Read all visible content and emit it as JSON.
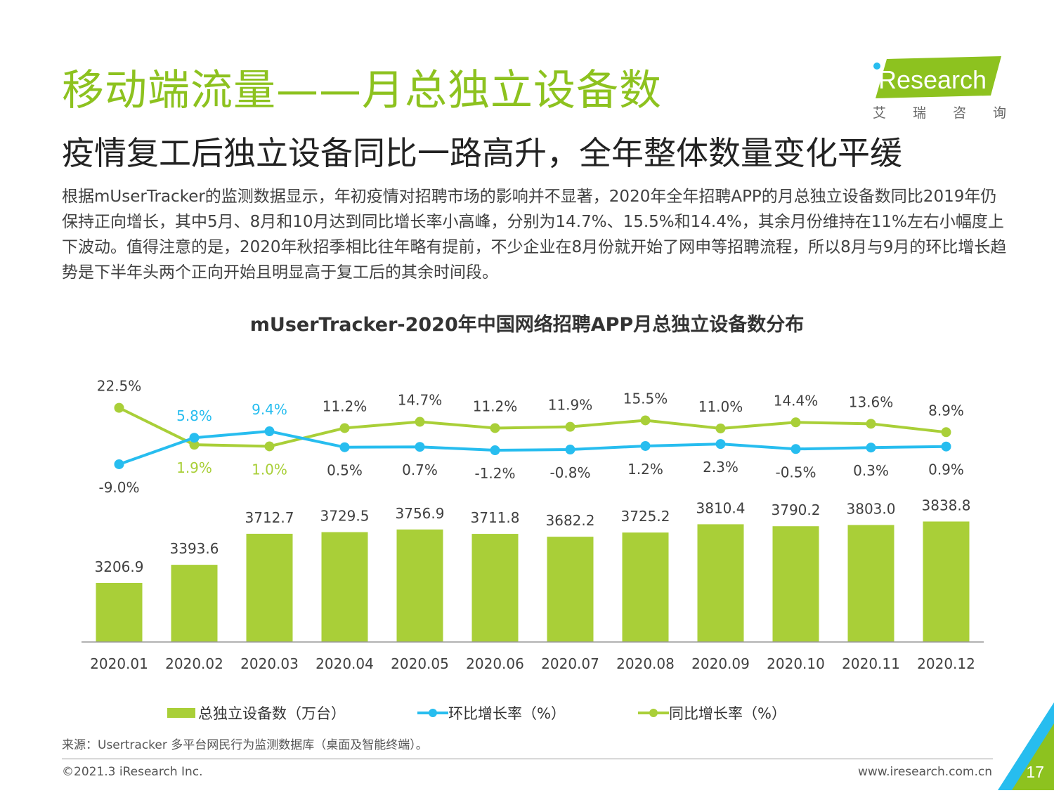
{
  "page": {
    "title": "移动端流量——月总独立设备数",
    "subtitle": "疫情复工后独立设备同比一路高升，全年整体数量变化平缓",
    "body": "根据mUserTracker的监测数据显示，年初疫情对招聘市场的影响并不显著，2020年全年招聘APP的月总独立设备数同比2019年仍保持正向增长，其中5月、8月和10月达到同比增长率小高峰，分别为14.7%、15.5%和14.4%，其余月份维持在11%左右小幅度上下波动。值得注意的是，2020年秋招季相比往年略有提前，不少企业在8月份就开始了网申等招聘流程，所以8月与9月的环比增长趋势是下半年头两个正向开始且明显高于复工后的其余时间段。",
    "source": "来源：Usertracker 多平台网民行为监测数据库（桌面及智能终端）。",
    "copyright": "©2021.3 iResearch Inc.",
    "website": "www.iresearch.com.cn",
    "page_number": "17"
  },
  "logo": {
    "text": "iResearch",
    "tagline": [
      "艾",
      "瑞",
      "咨",
      "询"
    ]
  },
  "colors": {
    "green": "#a9cf38",
    "title_green": "#8dc21f",
    "blue": "#27bdef"
  },
  "chart_data": {
    "type": "bar",
    "title": "mUserTracker-2020年中国网络招聘APP月总独立设备数分布",
    "categories": [
      "2020.01",
      "2020.02",
      "2020.03",
      "2020.04",
      "2020.05",
      "2020.06",
      "2020.07",
      "2020.08",
      "2020.09",
      "2020.10",
      "2020.11",
      "2020.12"
    ],
    "bar_labels": [
      "3206.9",
      "3393.6",
      "3712.7",
      "3729.5",
      "3756.9",
      "3711.8",
      "3682.2",
      "3725.2",
      "3810.4",
      "3790.2",
      "3803.0",
      "3838.8"
    ],
    "series": [
      {
        "name": "总独立设备数（万台）",
        "type": "bar",
        "values": [
          3206.9,
          3393.6,
          3712.7,
          3729.5,
          3756.9,
          3711.8,
          3682.2,
          3725.2,
          3810.4,
          3790.2,
          3803.0,
          3838.8
        ]
      },
      {
        "name": "环比增长率（%）",
        "type": "line",
        "values": [
          -9.0,
          5.8,
          9.4,
          0.5,
          0.7,
          -1.2,
          -0.8,
          1.2,
          2.3,
          -0.5,
          0.3,
          0.9
        ],
        "labels": [
          "-9.0%",
          "5.8%",
          "9.4%",
          "0.5%",
          "0.7%",
          "-1.2%",
          "-0.8%",
          "1.2%",
          "2.3%",
          "-0.5%",
          "0.3%",
          "0.9%"
        ]
      },
      {
        "name": "同比增长率（%）",
        "type": "line",
        "values": [
          22.5,
          1.9,
          1.0,
          11.2,
          14.7,
          11.2,
          11.9,
          15.5,
          11.0,
          14.4,
          13.6,
          8.9
        ],
        "labels": [
          "22.5%",
          "1.9%",
          "1.0%",
          "11.2%",
          "14.7%",
          "11.2%",
          "11.9%",
          "15.5%",
          "11.0%",
          "14.4%",
          "13.6%",
          "8.9%"
        ]
      }
    ],
    "grid": false,
    "legend_position": "bottom"
  }
}
